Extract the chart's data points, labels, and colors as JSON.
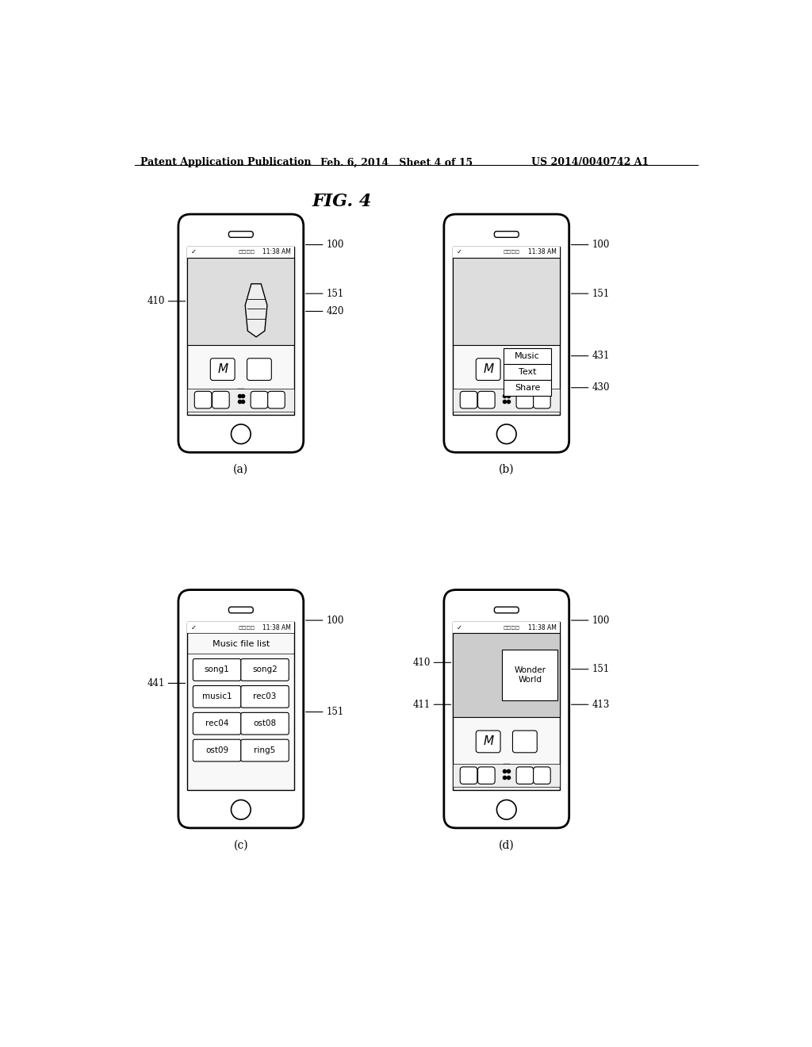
{
  "title": "FIG. 4",
  "header_left": "Patent Application Publication",
  "header_center": "Feb. 6, 2014   Sheet 4 of 15",
  "header_right": "US 2014/0040742 A1",
  "bg_color": "#ffffff",
  "phone_outline_color": "#000000",
  "phone_lw": 2.0,
  "status_time": "11:38 AM",
  "labels": {
    "a": "(a)",
    "b": "(b)",
    "c": "(c)",
    "d": "(d)"
  },
  "ref_nums": {
    "100": "100",
    "151": "151",
    "410a": "410",
    "420": "420",
    "430": "430",
    "431": "431",
    "441": "441",
    "410d": "410",
    "411": "411",
    "413": "413"
  },
  "menu_items": [
    "Music",
    "Text",
    "Share"
  ],
  "music_files": [
    [
      "song1",
      "song2"
    ],
    [
      "music1",
      "rec03"
    ],
    [
      "rec04",
      "ost08"
    ],
    [
      "ost09",
      "ring5"
    ]
  ],
  "wonder_world_title": "Wonder\nWorld"
}
